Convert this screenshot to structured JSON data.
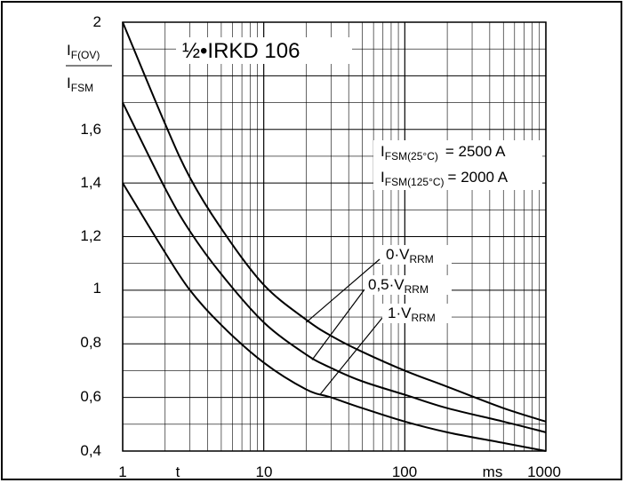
{
  "chart_data": {
    "type": "line",
    "title": "½•IRKD 106",
    "x_scale": "log",
    "xlim": [
      1,
      1000
    ],
    "ylim": [
      0.4,
      2.0
    ],
    "x_tick_labels": [
      "1",
      "10",
      "100",
      "1000"
    ],
    "x_extra_labels": {
      "t": "t",
      "unit": "ms"
    },
    "y_tick_labels": [
      "0,4",
      "0,6",
      "0,8",
      "1",
      "1,2",
      "1,4",
      "1,6",
      "2"
    ],
    "ylabel": {
      "numerator_main": "I",
      "numerator_sub": "F(OV)",
      "denominator_main": "I",
      "denominator_sub": "FSM"
    },
    "annotations": {
      "ifsm25": {
        "main": "I",
        "sub": "FSM(25°C)",
        "value": "= 2500 A"
      },
      "ifsm125": {
        "main": "I",
        "sub": "FSM(125°C)",
        "value": "= 2000 A"
      }
    },
    "grid": true,
    "series": [
      {
        "name": "0·V_RRM",
        "label_main": "0·V",
        "label_sub": "RRM",
        "x": [
          1,
          2,
          3,
          5,
          10,
          20,
          30,
          50,
          100,
          200,
          500,
          1000
        ],
        "y": [
          2.0,
          1.62,
          1.42,
          1.23,
          1.02,
          0.89,
          0.83,
          0.77,
          0.7,
          0.64,
          0.56,
          0.51
        ]
      },
      {
        "name": "0,5·V_RRM",
        "label_main": "0,5·V",
        "label_sub": "RRM",
        "x": [
          1,
          2,
          3,
          5,
          10,
          20,
          30,
          50,
          100,
          200,
          500,
          1000
        ],
        "y": [
          1.7,
          1.38,
          1.22,
          1.06,
          0.88,
          0.76,
          0.71,
          0.66,
          0.61,
          0.56,
          0.51,
          0.47
        ]
      },
      {
        "name": "1·V_RRM",
        "label_main": "1·V",
        "label_sub": "RRM",
        "x": [
          1,
          2,
          3,
          5,
          10,
          20,
          30,
          50,
          100,
          200,
          500,
          1000
        ],
        "y": [
          1.4,
          1.14,
          1.0,
          0.87,
          0.73,
          0.63,
          0.6,
          0.56,
          0.51,
          0.47,
          0.43,
          0.4
        ]
      }
    ]
  }
}
